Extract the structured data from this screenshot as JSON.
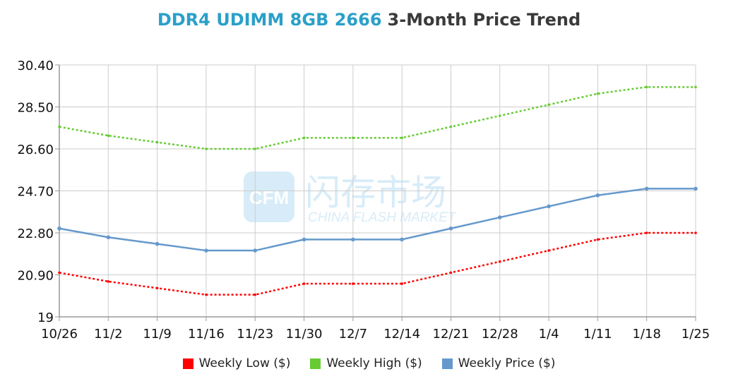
{
  "chart_data": {
    "type": "line",
    "title": "DDR4 UDIMM 8GB 2666",
    "subtitle": "3-Month Price Trend",
    "xlabel": "",
    "ylabel": "",
    "categories": [
      "10/26",
      "11/2",
      "11/9",
      "11/16",
      "11/23",
      "11/30",
      "12/7",
      "12/14",
      "12/21",
      "12/28",
      "1/4",
      "1/11",
      "1/18",
      "1/25"
    ],
    "ylim": [
      19,
      30.4
    ],
    "yticks": [
      19,
      20.9,
      22.8,
      24.7,
      26.6,
      28.5,
      30.4
    ],
    "ytick_labels": [
      "19",
      "20.90",
      "22.80",
      "24.70",
      "26.60",
      "28.50",
      "30.40"
    ],
    "grid": true,
    "legend_position": "bottom",
    "series": [
      {
        "name": "Weekly Low ($)",
        "color": "#ff0000",
        "dash": true,
        "values": [
          21.0,
          20.6,
          20.3,
          20.0,
          20.0,
          20.5,
          20.5,
          20.5,
          21.0,
          21.5,
          22.0,
          22.5,
          22.8,
          22.8
        ]
      },
      {
        "name": "Weekly High ($)",
        "color": "#66cc33",
        "dash": true,
        "values": [
          27.6,
          27.2,
          26.9,
          26.6,
          26.6,
          27.1,
          27.1,
          27.1,
          27.6,
          28.1,
          28.6,
          29.1,
          29.4,
          29.4
        ]
      },
      {
        "name": "Weekly Price ($)",
        "color": "#6699cc",
        "dash": false,
        "values": [
          23.0,
          22.6,
          22.3,
          22.0,
          22.0,
          22.5,
          22.5,
          22.5,
          23.0,
          23.5,
          24.0,
          24.5,
          24.8,
          24.8
        ]
      }
    ]
  },
  "watermark": {
    "logo_text": "CFM",
    "cn_text": "闪存市场",
    "en_text": "CHINA FLASH MARKET"
  }
}
